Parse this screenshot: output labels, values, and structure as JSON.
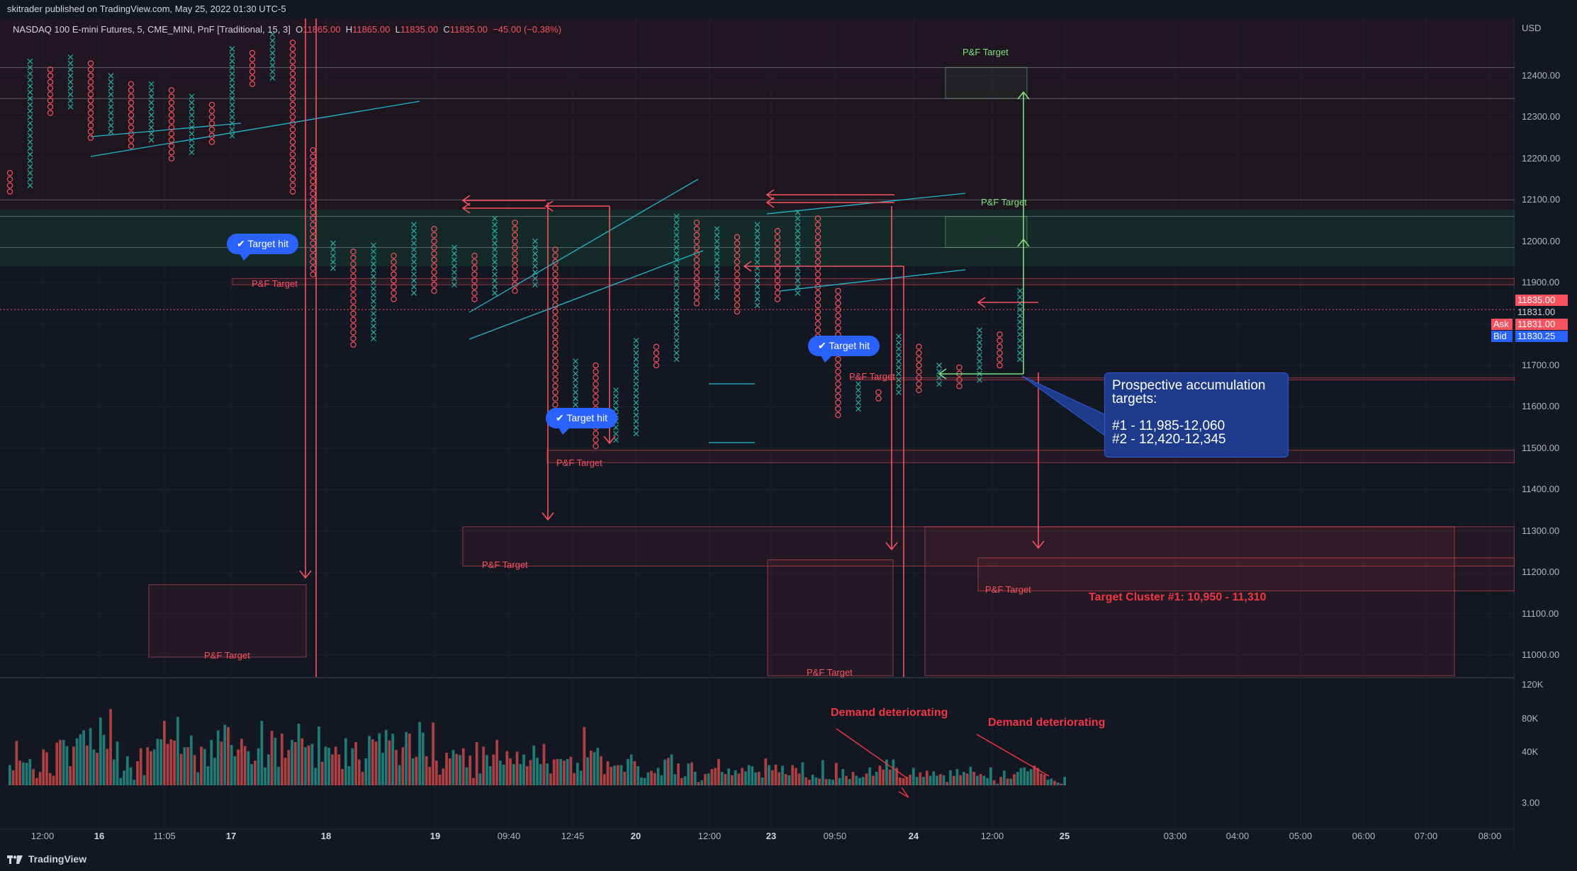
{
  "header": {
    "published": "skitrader published on TradingView.com, May 25, 2022 01:30 UTC-5"
  },
  "legend": {
    "symbol": "NASDAQ 100 E-mini Futures, 5, CME_MINI, PnF [Traditional, 15, 3]",
    "o_label": "O",
    "o_val": "11865.00",
    "h_label": "H",
    "h_val": "11865.00",
    "l_label": "L",
    "l_val": "11835.00",
    "c_label": "C",
    "c_val": "11835.00",
    "change": "−45.00 (−0.38%)"
  },
  "axis": {
    "currency": "USD",
    "price_ticks": [
      "12400.00",
      "12300.00",
      "12200.00",
      "12100.00",
      "12000.00",
      "11900.00",
      "11800.00",
      "11700.00",
      "11600.00",
      "11500.00",
      "11400.00",
      "11300.00",
      "11200.00",
      "11100.00",
      "11000.00"
    ],
    "volume_ticks": [
      "120K",
      "80K",
      "40K",
      "3.00"
    ],
    "time_ticks": [
      {
        "label": "12:00",
        "bold": false
      },
      {
        "label": "16",
        "bold": true
      },
      {
        "label": "11:05",
        "bold": false
      },
      {
        "label": "17",
        "bold": true
      },
      {
        "label": "18",
        "bold": true
      },
      {
        "label": "19",
        "bold": true
      },
      {
        "label": "09:40",
        "bold": false
      },
      {
        "label": "12:45",
        "bold": false
      },
      {
        "label": "20",
        "bold": true
      },
      {
        "label": "12:00",
        "bold": false
      },
      {
        "label": "23",
        "bold": true
      },
      {
        "label": "09:50",
        "bold": false
      },
      {
        "label": "24",
        "bold": true
      },
      {
        "label": "12:00",
        "bold": false
      },
      {
        "label": "25",
        "bold": true
      },
      {
        "label": "03:00",
        "bold": false
      },
      {
        "label": "04:00",
        "bold": false
      },
      {
        "label": "05:00",
        "bold": false
      },
      {
        "label": "06:00",
        "bold": false
      },
      {
        "label": "07:00",
        "bold": false
      },
      {
        "label": "08:00",
        "bold": false
      }
    ]
  },
  "price_tags": {
    "last": "11835.00",
    "last2": "11831.00",
    "ask_label": "Ask",
    "ask": "11831.00",
    "bid_label": "Bid",
    "bid": "11830.25"
  },
  "annotations": {
    "pf_target": "P&F Target",
    "target_hit": "✔ Target hit",
    "callout_title": "Prospective accumulation targets:",
    "callout_t1": "#1 - 11,985-12,060",
    "callout_t2": "#2 - 12,420-12,345",
    "demand": "Demand deteriorating",
    "cluster": "Target Cluster #1: 10,950 - 11,310"
  },
  "footer": {
    "brand": "TradingView"
  },
  "colors": {
    "background": "#131722",
    "up": "#26a69a",
    "down": "#f7525f",
    "target_red": "#f23645",
    "target_green": "#7ee07e",
    "trend": "#22b8cf"
  },
  "chart_data": {
    "type": "point-and-figure",
    "title": "NASDAQ 100 E-mini Futures, 5, CME_MINI, PnF [Traditional, 15, 3]",
    "box_size": 15,
    "reversal": 3,
    "ylim": [
      10940,
      12520
    ],
    "yticks": [
      11000,
      11100,
      11200,
      11300,
      11400,
      11500,
      11600,
      11700,
      11800,
      11900,
      12000,
      12100,
      12200,
      12300,
      12400
    ],
    "ohlc": {
      "open": 11865,
      "high": 11865,
      "low": 11835,
      "close": 11835,
      "change": -45,
      "change_pct": -0.38
    },
    "columns": [
      {
        "type": "O",
        "low": 12120,
        "high": 12170
      },
      {
        "type": "X",
        "low": 12135,
        "high": 12440
      },
      {
        "type": "O",
        "low": 12310,
        "high": 12425
      },
      {
        "type": "X",
        "low": 12325,
        "high": 12455
      },
      {
        "type": "O",
        "low": 12250,
        "high": 12440
      },
      {
        "type": "X",
        "low": 12265,
        "high": 12400
      },
      {
        "type": "O",
        "low": 12230,
        "high": 12385
      },
      {
        "type": "X",
        "low": 12245,
        "high": 12380
      },
      {
        "type": "O",
        "low": 12200,
        "high": 12365
      },
      {
        "type": "X",
        "low": 12215,
        "high": 12350
      },
      {
        "type": "O",
        "low": 12240,
        "high": 12335
      },
      {
        "type": "X",
        "low": 12255,
        "high": 12470
      },
      {
        "type": "O",
        "low": 12380,
        "high": 12455
      },
      {
        "type": "X",
        "low": 12395,
        "high": 12500
      },
      {
        "type": "O",
        "low": 12120,
        "high": 12485
      },
      {
        "type": "O",
        "low": 11920,
        "high": 12230
      },
      {
        "type": "X",
        "low": 11935,
        "high": 12000
      },
      {
        "type": "O",
        "low": 11750,
        "high": 11985
      },
      {
        "type": "X",
        "low": 11765,
        "high": 11990
      },
      {
        "type": "O",
        "low": 11860,
        "high": 11975
      },
      {
        "type": "X",
        "low": 11875,
        "high": 12050
      },
      {
        "type": "O",
        "low": 11880,
        "high": 12035
      },
      {
        "type": "X",
        "low": 11895,
        "high": 11990
      },
      {
        "type": "O",
        "low": 11860,
        "high": 11975
      },
      {
        "type": "X",
        "low": 11875,
        "high": 12060
      },
      {
        "type": "O",
        "low": 11880,
        "high": 12045
      },
      {
        "type": "X",
        "low": 11895,
        "high": 12005
      },
      {
        "type": "O",
        "low": 11590,
        "high": 11990
      },
      {
        "type": "X",
        "low": 11605,
        "high": 11720
      },
      {
        "type": "O",
        "low": 11505,
        "high": 11705
      },
      {
        "type": "X",
        "low": 11520,
        "high": 11640
      },
      {
        "type": "X",
        "low": 11535,
        "high": 11760
      },
      {
        "type": "O",
        "low": 11700,
        "high": 11745
      },
      {
        "type": "X",
        "low": 11715,
        "high": 12060
      },
      {
        "type": "O",
        "low": 11850,
        "high": 12045
      },
      {
        "type": "X",
        "low": 11865,
        "high": 12030
      },
      {
        "type": "O",
        "low": 11830,
        "high": 12015
      },
      {
        "type": "X",
        "low": 11845,
        "high": 12050
      },
      {
        "type": "O",
        "low": 11860,
        "high": 12035
      },
      {
        "type": "X",
        "low": 11875,
        "high": 12070
      },
      {
        "type": "O",
        "low": 11740,
        "high": 12055
      },
      {
        "type": "O",
        "low": 11580,
        "high": 11880
      },
      {
        "type": "X",
        "low": 11595,
        "high": 11660
      },
      {
        "type": "O",
        "low": 11620,
        "high": 11645
      },
      {
        "type": "X",
        "low": 11635,
        "high": 11770
      },
      {
        "type": "O",
        "low": 11640,
        "high": 11755
      },
      {
        "type": "X",
        "low": 11655,
        "high": 11710
      },
      {
        "type": "O",
        "low": 11650,
        "high": 11695
      },
      {
        "type": "X",
        "low": 11665,
        "high": 11790
      },
      {
        "type": "O",
        "low": 11700,
        "high": 11775
      },
      {
        "type": "X",
        "low": 11715,
        "high": 11880
      }
    ],
    "pf_targets": [
      {
        "color": "red",
        "low": 10995,
        "high": 11170
      },
      {
        "color": "red",
        "low": 11215,
        "high": 11310
      },
      {
        "color": "red",
        "low": 10950,
        "high": 11230
      },
      {
        "color": "red",
        "low": 10950,
        "high": 11310
      },
      {
        "color": "red",
        "low": 11155,
        "high": 11235
      },
      {
        "color": "red",
        "low": 11465,
        "high": 11495
      },
      {
        "color": "red",
        "low": 11665,
        "high": 11670
      },
      {
        "color": "red",
        "low": 11895,
        "high": 11910
      },
      {
        "color": "green",
        "low": 11985,
        "high": 12060
      },
      {
        "color": "green",
        "low": 12345,
        "high": 12420
      }
    ],
    "volume": {
      "yticks": [
        40000,
        80000,
        120000
      ],
      "bars": [
        36,
        27,
        79,
        44,
        41,
        40,
        47,
        29,
        13,
        24,
        64,
        59,
        22,
        17,
        76,
        81,
        81,
        70,
        34,
        69,
        84,
        91,
        98,
        71,
        102,
        64,
        58,
        121,
        90,
        65,
        136,
        46,
        78,
        13,
        26,
        52,
        32,
        10,
        43,
        66,
        18,
        68,
        61,
        64,
        83,
        82,
        115,
        74,
        82,
        80,
        122,
        56,
        68,
        68,
        89,
        54,
        23,
        69,
        65,
        34,
        81,
        49,
        98,
        78,
        108,
        104,
        72,
        52,
        64,
        83,
        70,
        61,
        38,
        44,
        66,
        115,
        32,
        55,
        97,
        85,
        33,
        92,
        49,
        63,
        81,
        77,
        110,
        84,
        68,
        71,
        74,
        31,
        105,
        42,
        69,
        67,
        55,
        69,
        55,
        29,
        84,
        34,
        66,
        77,
        46,
        24,
        48,
        88,
        82,
        78,
        93,
        58,
        99,
        80,
        92,
        63,
        36,
        68,
        95,
        92,
        48,
        51,
        113,
        94,
        52,
        33,
        112,
        44,
        19,
        30,
        58,
        48,
        63,
        56,
        54,
        66,
        32,
        53,
        13,
        77,
        21,
        69,
        54,
        34,
        55,
        81,
        44,
        37,
        61,
        48,
        38,
        60,
        38,
        55,
        34,
        45,
        71,
        49,
        38,
        74,
        39,
        21,
        46,
        47,
        47,
        44,
        47,
        51,
        22,
        40,
        26,
        104,
        50,
        62,
        59,
        67,
        52,
        20,
        43,
        33,
        35,
        36,
        36,
        24,
        47,
        55,
        43,
        34,
        14,
        13,
        23,
        26,
        22,
        31,
        18,
        46,
        49,
        55,
        20,
        39,
        13,
        16,
        39,
        41,
        24,
        6,
        9,
        20,
        21,
        29,
        31,
        47,
        24,
        20,
        30,
        18,
        27,
        21,
        31,
        25,
        36,
        34,
        23,
        24,
        14,
        48,
        36,
        27,
        37,
        23,
        35,
        20,
        18,
        36,
        31,
        21,
        41,
        14,
        10,
        19,
        14,
        12,
        45,
        11,
        11,
        10,
        40,
        13,
        29,
        17,
        11,
        24,
        17,
        13,
        15,
        21,
        32,
        17,
        24,
        35,
        28,
        46,
        28,
        46,
        31,
        14,
        13,
        15,
        19,
        31,
        15,
        23,
        15,
        26,
        17,
        25,
        17,
        20,
        18,
        6,
        27,
        17,
        29,
        18,
        24,
        21,
        33,
        24,
        17,
        20,
        17,
        13,
        32,
        9,
        3,
        15,
        26,
        12,
        12,
        20,
        24,
        31,
        32,
        25,
        29,
        35,
        31,
        21,
        19,
        10,
        12,
        8,
        5,
        3,
        15
      ]
    }
  }
}
